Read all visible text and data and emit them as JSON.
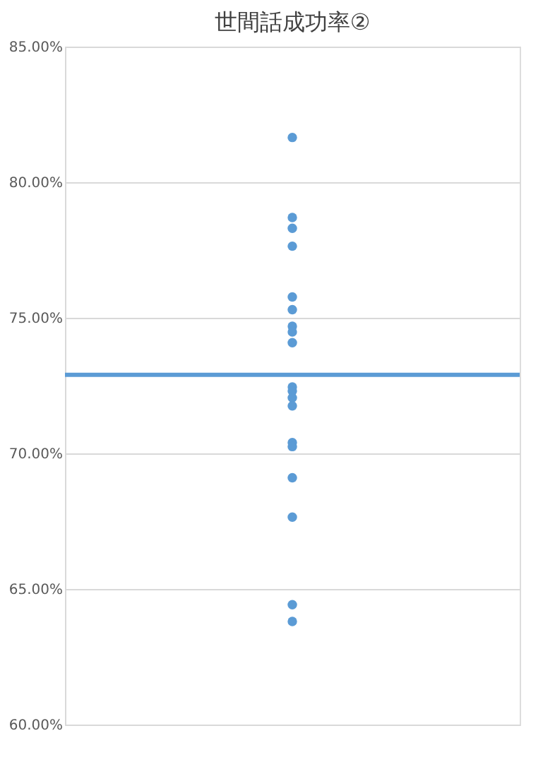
{
  "chart_data": {
    "type": "scatter",
    "title": "世間話成功率②",
    "categories": [
      null
    ],
    "series": [
      {
        "color": "#5b9bd5",
        "values": [
          81.65
        ]
      },
      {
        "color": "#5b9bd5",
        "values": [
          78.7
        ]
      },
      {
        "color": "#5b9bd5",
        "values": [
          78.3
        ]
      },
      {
        "color": "#5b9bd5",
        "values": [
          77.64
        ]
      },
      {
        "color": "#5b9bd5",
        "values": [
          75.77
        ]
      },
      {
        "color": "#5b9bd5",
        "values": [
          75.3
        ]
      },
      {
        "color": "#5b9bd5",
        "values": [
          74.69
        ]
      },
      {
        "color": "#5b9bd5",
        "values": [
          74.48
        ]
      },
      {
        "color": "#5b9bd5",
        "values": [
          74.08
        ]
      },
      {
        "color": "#5b9bd5",
        "values": [
          72.45
        ]
      },
      {
        "color": "#5b9bd5",
        "values": [
          72.3
        ]
      },
      {
        "color": "#5b9bd5",
        "values": [
          72.05
        ]
      },
      {
        "color": "#5b9bd5",
        "values": [
          71.75
        ]
      },
      {
        "color": "#5b9bd5",
        "values": [
          70.4
        ]
      },
      {
        "color": "#5b9bd5",
        "values": [
          70.25
        ]
      },
      {
        "color": "#5b9bd5",
        "values": [
          69.1
        ]
      },
      {
        "color": "#5b9bd5",
        "values": [
          67.65
        ]
      },
      {
        "color": "#5b9bd5",
        "values": [
          64.42
        ]
      },
      {
        "color": "#5b9bd5",
        "values": [
          63.8
        ]
      }
    ],
    "ylim": [
      60,
      85
    ],
    "yticks": [
      {
        "value": 60,
        "label": "60.00%"
      },
      {
        "value": 65,
        "label": "65.00%"
      },
      {
        "value": 70,
        "label": "70.00%"
      },
      {
        "value": 75,
        "label": "75.00%"
      },
      {
        "value": 80,
        "label": "80.00%"
      },
      {
        "value": 85,
        "label": "85.00%"
      }
    ],
    "ref_lines": [
      {
        "axis": "y",
        "value": 72.9,
        "color": "#5b9bd5"
      }
    ],
    "grid": "y",
    "marker": "circle",
    "tick_labels": "y"
  }
}
